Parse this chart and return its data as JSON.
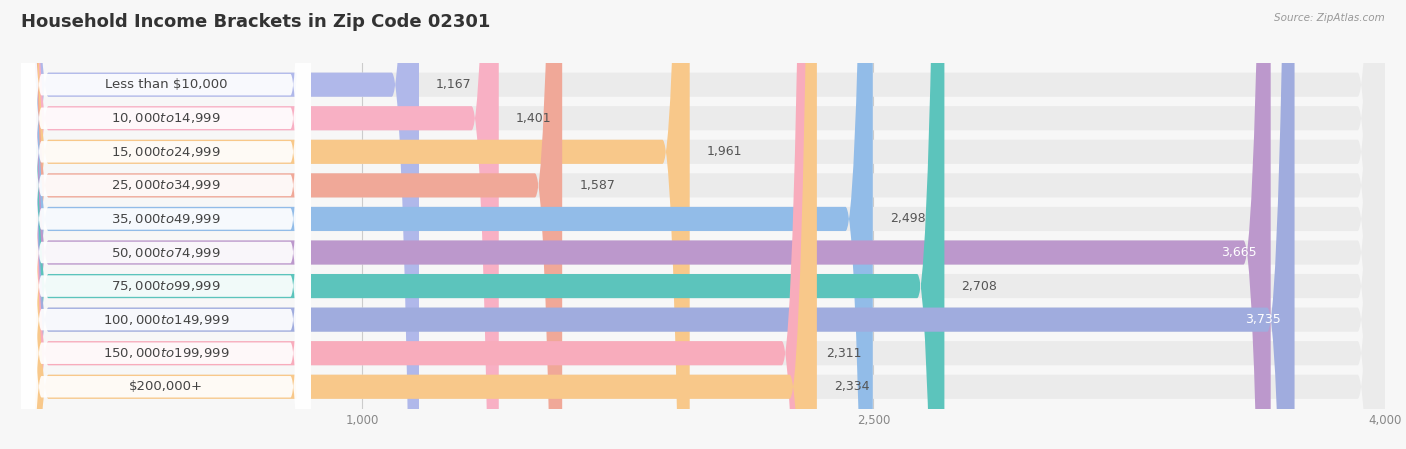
{
  "title": "Household Income Brackets in Zip Code 02301",
  "source": "Source: ZipAtlas.com",
  "categories": [
    "Less than $10,000",
    "$10,000 to $14,999",
    "$15,000 to $24,999",
    "$25,000 to $34,999",
    "$35,000 to $49,999",
    "$50,000 to $74,999",
    "$75,000 to $99,999",
    "$100,000 to $149,999",
    "$150,000 to $199,999",
    "$200,000+"
  ],
  "values": [
    1167,
    1401,
    1961,
    1587,
    2498,
    3665,
    2708,
    3735,
    2311,
    2334
  ],
  "bar_colors": [
    "#b0b8ea",
    "#f8b0c4",
    "#f8c88a",
    "#f0a898",
    "#92bce8",
    "#bc98cc",
    "#5cc4bc",
    "#a0acde",
    "#f8acbc",
    "#f8c88a"
  ],
  "label_pill_colors": [
    "#c8cce8",
    "#f8c0d0",
    "#fcd8a0",
    "#f4b8a8",
    "#a8c8ec",
    "#caacd8",
    "#7cd4cc",
    "#b4b8e4",
    "#f8bcc8",
    "#fcd8a0"
  ],
  "background_color": "#f7f7f7",
  "bar_bg_color": "#ebebeb",
  "xlim": [
    0,
    4000
  ],
  "xticks": [
    1000,
    2500,
    4000
  ],
  "title_fontsize": 13,
  "label_fontsize": 9.5,
  "value_fontsize": 9
}
